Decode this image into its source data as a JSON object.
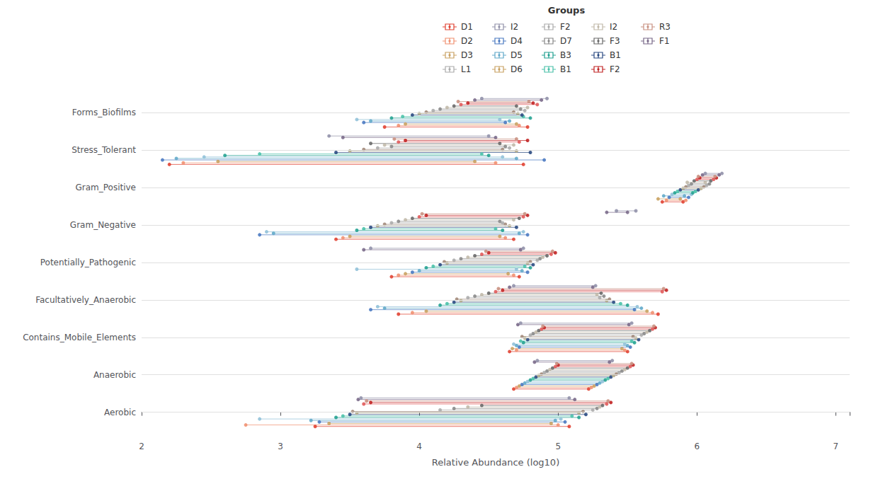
{
  "chart_data": {
    "type": "dumbbell",
    "categories": [
      "Forms_Biofilms",
      "Stress_Tolerant",
      "Gram_Positive",
      "Gram_Negative",
      "Potentially_Pathogenic",
      "Facultatively_Anaerobic",
      "Contains_Mobile_Elements",
      "Anaerobic",
      "Aerobic"
    ],
    "xlabel": "Relative Abundance (log10)",
    "xlim": [
      2,
      7.1
    ],
    "xticks": [
      2,
      3,
      4,
      5,
      6,
      7
    ],
    "grid": true,
    "legend_title": "Groups",
    "legend_items": [
      {
        "name": "D1",
        "color": "#e04030"
      },
      {
        "name": "D2",
        "color": "#f09070"
      },
      {
        "name": "D3",
        "color": "#c8a060"
      },
      {
        "name": "L1",
        "color": "#aaaaaa"
      },
      {
        "name": "I2",
        "color": "#9090a8"
      },
      {
        "name": "D4",
        "color": "#4878c0"
      },
      {
        "name": "D5",
        "color": "#60a8c8"
      },
      {
        "name": "D6",
        "color": "#c8a060"
      },
      {
        "name": "F2",
        "color": "#aaaaaa"
      },
      {
        "name": "D7",
        "color": "#888888"
      },
      {
        "name": "B3",
        "color": "#20a090"
      },
      {
        "name": "B1",
        "color": "#48c0a8"
      },
      {
        "name": "I2",
        "color": "#c0b8a8"
      },
      {
        "name": "F3",
        "color": "#686868"
      },
      {
        "name": "B1",
        "color": "#284880"
      },
      {
        "name": "F2",
        "color": "#c02020"
      },
      {
        "name": "R3",
        "color": "#c89080"
      },
      {
        "name": "F1",
        "color": "#786888"
      }
    ],
    "series": [
      {
        "color": "#e04030",
        "values": [
          [
            3.75,
            4.78
          ],
          [
            2.2,
            4.75
          ],
          [
            5.75,
            5.9
          ],
          [
            3.4,
            4.68
          ],
          [
            3.8,
            4.72
          ],
          [
            3.85,
            5.72
          ],
          [
            4.65,
            5.5
          ],
          [
            4.68,
            5.22
          ],
          [
            3.25,
            5.08
          ]
        ]
      },
      {
        "color": "#f09070",
        "values": [
          [
            3.85,
            4.72
          ],
          [
            2.3,
            4.55
          ],
          [
            5.78,
            5.92
          ],
          [
            3.45,
            4.62
          ],
          [
            3.85,
            4.68
          ],
          [
            3.95,
            5.68
          ],
          [
            4.7,
            5.48
          ],
          [
            4.7,
            5.24
          ],
          [
            2.75,
            5.0
          ]
        ]
      },
      {
        "color": "#c8a060",
        "values": [
          [
            3.9,
            4.7
          ],
          [
            2.55,
            4.4
          ],
          [
            5.72,
            5.88
          ],
          [
            3.5,
            4.58
          ],
          [
            3.9,
            4.64
          ],
          [
            4.05,
            5.64
          ],
          [
            4.67,
            5.46
          ],
          [
            4.72,
            5.26
          ],
          [
            3.35,
            4.95
          ]
        ]
      },
      {
        "color": "#4878c0",
        "values": [
          [
            3.6,
            4.62
          ],
          [
            2.15,
            4.9
          ],
          [
            5.8,
            5.94
          ],
          [
            2.85,
            4.78
          ],
          [
            3.95,
            4.78
          ],
          [
            3.65,
            5.55
          ],
          [
            4.72,
            5.52
          ],
          [
            4.74,
            5.28
          ],
          [
            3.28,
            5.05
          ]
        ]
      },
      {
        "color": "#60a8c8",
        "values": [
          [
            3.65,
            4.65
          ],
          [
            2.25,
            4.7
          ],
          [
            5.76,
            5.91
          ],
          [
            2.95,
            4.72
          ],
          [
            4.0,
            4.74
          ],
          [
            3.75,
            5.6
          ],
          [
            4.7,
            5.5
          ],
          [
            4.76,
            5.3
          ],
          [
            3.22,
            4.98
          ]
        ]
      },
      {
        "color": "#90c0d8",
        "values": [
          [
            3.55,
            4.58
          ],
          [
            2.45,
            4.6
          ],
          [
            5.82,
            5.96
          ],
          [
            2.9,
            4.75
          ],
          [
            3.55,
            4.7
          ],
          [
            3.7,
            5.57
          ],
          [
            4.68,
            5.48
          ],
          [
            4.78,
            5.32
          ],
          [
            2.85,
            5.02
          ]
        ]
      },
      {
        "color": "#20a090",
        "values": [
          [
            3.8,
            4.8
          ],
          [
            2.6,
            4.5
          ],
          [
            5.84,
            5.97
          ],
          [
            3.55,
            4.6
          ],
          [
            4.05,
            4.8
          ],
          [
            4.15,
            5.5
          ],
          [
            4.75,
            5.55
          ],
          [
            4.8,
            5.34
          ],
          [
            3.4,
            5.15
          ]
        ]
      },
      {
        "color": "#48c0a8",
        "values": [
          [
            3.88,
            4.75
          ],
          [
            2.85,
            4.45
          ],
          [
            5.86,
            5.99
          ],
          [
            3.6,
            4.55
          ],
          [
            4.1,
            4.76
          ],
          [
            4.2,
            5.45
          ],
          [
            4.73,
            5.53
          ],
          [
            4.82,
            5.36
          ],
          [
            3.45,
            5.1
          ]
        ]
      },
      {
        "color": "#284880",
        "values": [
          [
            3.95,
            4.74
          ],
          [
            3.4,
            4.8
          ],
          [
            5.88,
            6.01
          ],
          [
            3.65,
            4.7
          ],
          [
            4.15,
            4.82
          ],
          [
            4.25,
            5.4
          ],
          [
            4.78,
            5.58
          ],
          [
            4.84,
            5.38
          ],
          [
            3.5,
            5.2
          ]
        ]
      },
      {
        "color": "#b0a888",
        "values": [
          [
            4.0,
            4.71
          ],
          [
            3.5,
            4.7
          ],
          [
            5.9,
            6.03
          ],
          [
            3.7,
            4.65
          ],
          [
            4.2,
            4.78
          ],
          [
            4.3,
            5.35
          ],
          [
            4.76,
            5.56
          ],
          [
            4.86,
            5.4
          ],
          [
            3.55,
            5.15
          ]
        ]
      },
      {
        "color": "#a08878",
        "values": [
          [
            4.05,
            4.68
          ],
          [
            3.6,
            4.6
          ],
          [
            5.92,
            6.05
          ],
          [
            3.75,
            4.62
          ],
          [
            4.18,
            4.8
          ],
          [
            4.27,
            5.37
          ],
          [
            4.74,
            5.54
          ],
          [
            4.88,
            5.42
          ],
          [
            3.52,
            5.18
          ]
        ]
      },
      {
        "color": "#aaaaaa",
        "values": [
          [
            4.1,
            4.76
          ],
          [
            3.7,
            4.65
          ],
          [
            5.94,
            6.07
          ],
          [
            3.8,
            4.6
          ],
          [
            4.25,
            4.85
          ],
          [
            4.35,
            5.3
          ],
          [
            4.8,
            5.6
          ],
          [
            4.9,
            5.44
          ],
          [
            4.15,
            5.25
          ]
        ]
      },
      {
        "color": "#888888",
        "values": [
          [
            4.15,
            4.73
          ],
          [
            3.8,
            4.62
          ],
          [
            5.96,
            6.09
          ],
          [
            3.85,
            4.58
          ],
          [
            4.3,
            4.87
          ],
          [
            4.4,
            5.33
          ],
          [
            4.82,
            5.62
          ],
          [
            4.92,
            5.46
          ],
          [
            4.25,
            5.28
          ]
        ]
      },
      {
        "color": "#c0b8a8",
        "values": [
          [
            4.2,
            4.78
          ],
          [
            3.75,
            4.68
          ],
          [
            5.93,
            6.06
          ],
          [
            3.9,
            4.68
          ],
          [
            4.35,
            4.89
          ],
          [
            4.45,
            5.28
          ],
          [
            4.84,
            5.64
          ],
          [
            4.94,
            5.48
          ],
          [
            4.35,
            5.3
          ]
        ]
      },
      {
        "color": "#686868",
        "values": [
          [
            4.25,
            4.7
          ],
          [
            3.65,
            4.58
          ],
          [
            5.98,
            6.1
          ],
          [
            3.95,
            4.72
          ],
          [
            4.4,
            4.92
          ],
          [
            4.5,
            5.31
          ],
          [
            4.86,
            5.66
          ],
          [
            4.96,
            5.5
          ],
          [
            4.45,
            5.32
          ]
        ]
      },
      {
        "color": "#e05858",
        "values": [
          [
            4.3,
            4.85
          ],
          [
            3.85,
            4.72
          ],
          [
            6.0,
            6.12
          ],
          [
            4.0,
            4.75
          ],
          [
            4.45,
            4.95
          ],
          [
            4.55,
            5.75
          ],
          [
            4.88,
            5.68
          ],
          [
            4.98,
            5.52
          ],
          [
            3.6,
            5.35
          ]
        ]
      },
      {
        "color": "#c02020",
        "values": [
          [
            4.35,
            4.82
          ],
          [
            3.9,
            4.78
          ],
          [
            6.02,
            6.14
          ],
          [
            4.05,
            4.78
          ],
          [
            4.5,
            4.98
          ],
          [
            4.6,
            5.78
          ],
          [
            4.9,
            5.7
          ],
          [
            5.0,
            5.54
          ],
          [
            3.65,
            5.38
          ]
        ]
      },
      {
        "color": "#c89080",
        "values": [
          [
            4.28,
            4.79
          ],
          [
            3.82,
            4.7
          ],
          [
            6.01,
            6.13
          ],
          [
            4.02,
            4.76
          ],
          [
            4.48,
            4.96
          ],
          [
            4.57,
            5.76
          ],
          [
            4.89,
            5.69
          ],
          [
            4.99,
            5.53
          ],
          [
            3.62,
            5.36
          ]
        ]
      },
      {
        "color": "#786888",
        "values": [
          [
            4.4,
            4.88
          ],
          [
            3.45,
            4.55
          ],
          [
            6.04,
            6.16
          ],
          [
            5.35,
            5.5
          ],
          [
            3.6,
            4.73
          ],
          [
            4.65,
            5.25
          ],
          [
            4.71,
            5.51
          ],
          [
            4.83,
            5.37
          ],
          [
            3.56,
            5.12
          ]
        ]
      },
      {
        "color": "#9090a8",
        "values": [
          [
            4.45,
            4.92
          ],
          [
            3.35,
            4.5
          ],
          [
            6.06,
            6.18
          ],
          [
            5.42,
            5.56
          ],
          [
            3.65,
            4.75
          ],
          [
            4.68,
            5.27
          ],
          [
            4.73,
            5.53
          ],
          [
            4.85,
            5.39
          ],
          [
            3.58,
            5.08
          ]
        ]
      }
    ]
  }
}
